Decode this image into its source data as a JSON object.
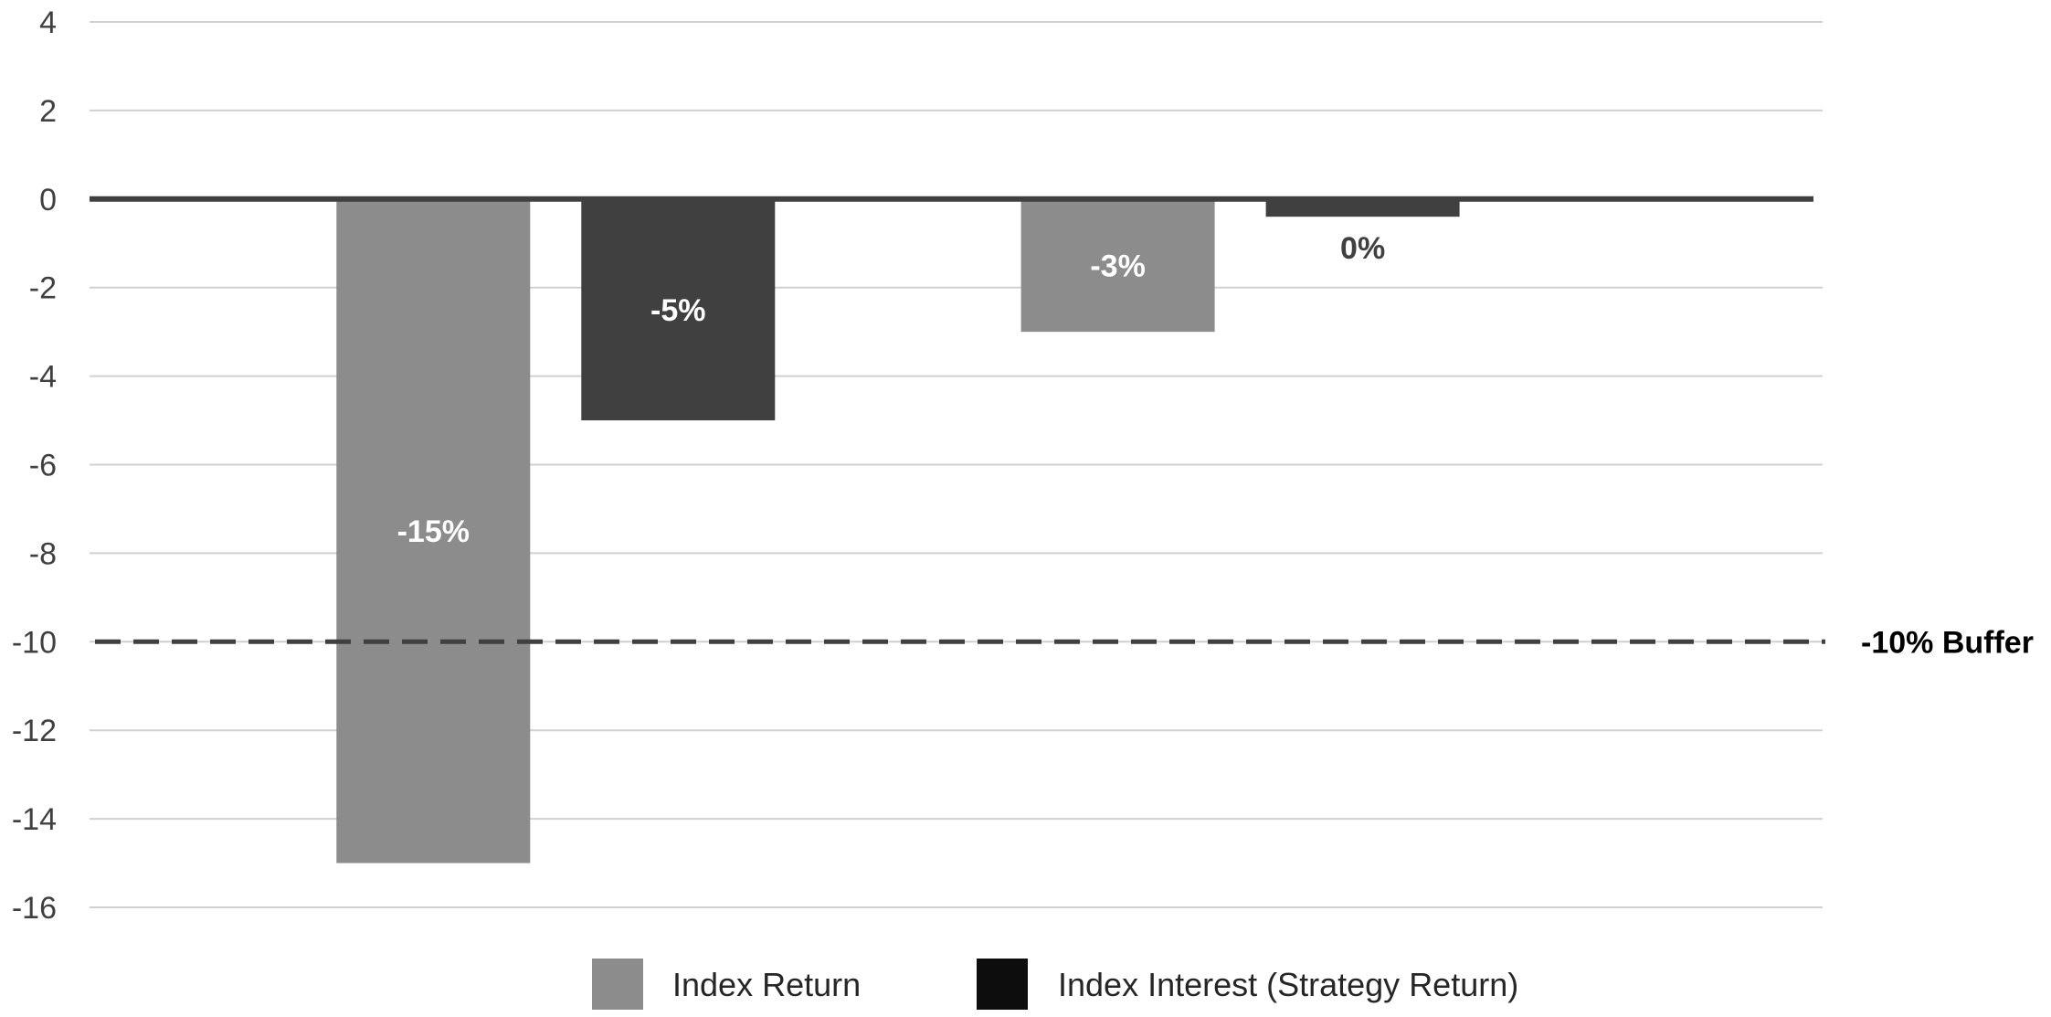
{
  "chart_data": {
    "type": "bar",
    "categories": [
      "",
      ""
    ],
    "series": [
      {
        "name": "Index Return",
        "values": [
          -15,
          -3
        ],
        "labels": [
          "-15%",
          "-3%"
        ],
        "color": "#8c8c8c",
        "label_color": "#ffffff"
      },
      {
        "name": "Index Interest (Strategy Return)",
        "values": [
          -5,
          -0.4
        ],
        "labels": [
          "-5%",
          "0%"
        ],
        "color": "#404040",
        "label_color": "#ffffff",
        "outside_label_color": "#404040"
      }
    ],
    "ylim": [
      -16,
      4
    ],
    "y_ticks": [
      4,
      2,
      0,
      -2,
      -4,
      -6,
      -8,
      -10,
      -12,
      -14,
      -16
    ],
    "reference_line": {
      "value": -10,
      "label": "-10% Buffer",
      "style": "dashed"
    },
    "legend": {
      "position": "bottom",
      "items": [
        {
          "label": "Index Return",
          "color": "#8c8c8c"
        },
        {
          "label": "Index Interest (Strategy Return)",
          "color": "#0d0d0d"
        }
      ]
    },
    "grid": true,
    "title": "",
    "xlabel": "",
    "ylabel": ""
  }
}
